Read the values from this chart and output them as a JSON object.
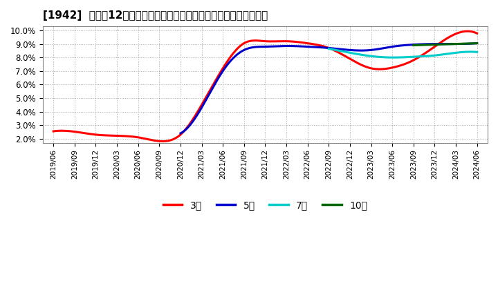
{
  "title": "[1942]  売上高12か月移動合計の対前年同期増減率の標準偏差の推移",
  "ylim": [
    1.7,
    10.3
  ],
  "yticks": [
    2.0,
    3.0,
    4.0,
    5.0,
    6.0,
    7.0,
    8.0,
    9.0,
    10.0
  ],
  "legend_labels": [
    "3年",
    "5年",
    "7年",
    "10年"
  ],
  "legend_colors": [
    "#ff0000",
    "#0000cc",
    "#00cccc",
    "#006600"
  ],
  "background_color": "#ffffff",
  "plot_bg_color": "#ffffff",
  "series_3y": {
    "x": [
      0,
      1,
      2,
      3,
      4,
      5,
      6,
      7,
      8,
      9,
      10,
      11,
      12,
      13,
      14,
      15,
      16,
      17,
      18,
      19,
      20
    ],
    "y": [
      2.55,
      2.52,
      2.3,
      2.22,
      2.1,
      1.82,
      2.3,
      4.5,
      7.2,
      9.05,
      9.2,
      9.2,
      9.05,
      8.7,
      7.9,
      7.2,
      7.25,
      7.8,
      8.8,
      9.75,
      9.78
    ],
    "color": "#ff0000"
  },
  "series_5y": {
    "x": [
      6,
      7,
      8,
      9,
      10,
      11,
      12,
      13,
      14,
      15,
      16,
      17,
      18,
      19,
      20
    ],
    "y": [
      2.4,
      4.3,
      7.0,
      8.55,
      8.8,
      8.85,
      8.8,
      8.7,
      8.55,
      8.55,
      8.8,
      8.95,
      9.0,
      9.0,
      9.05
    ],
    "color": "#0000cc"
  },
  "series_7y": {
    "x": [
      13,
      14,
      15,
      16,
      17,
      18,
      19,
      20
    ],
    "y": [
      8.65,
      8.35,
      8.1,
      8.0,
      8.05,
      8.15,
      8.35,
      8.4
    ],
    "color": "#00cccc"
  },
  "series_10y": {
    "x": [
      17,
      18,
      19,
      20
    ],
    "y": [
      8.9,
      8.95,
      9.0,
      9.05
    ],
    "color": "#006600"
  },
  "xtick_labels": [
    "2019/06",
    "2019/09",
    "2019/12",
    "2020/03",
    "2020/06",
    "2020/09",
    "2020/12",
    "2021/03",
    "2021/06",
    "2021/09",
    "2021/12",
    "2022/03",
    "2022/06",
    "2022/09",
    "2022/12",
    "2023/03",
    "2023/06",
    "2023/09",
    "2023/12",
    "2024/03",
    "2024/06"
  ]
}
